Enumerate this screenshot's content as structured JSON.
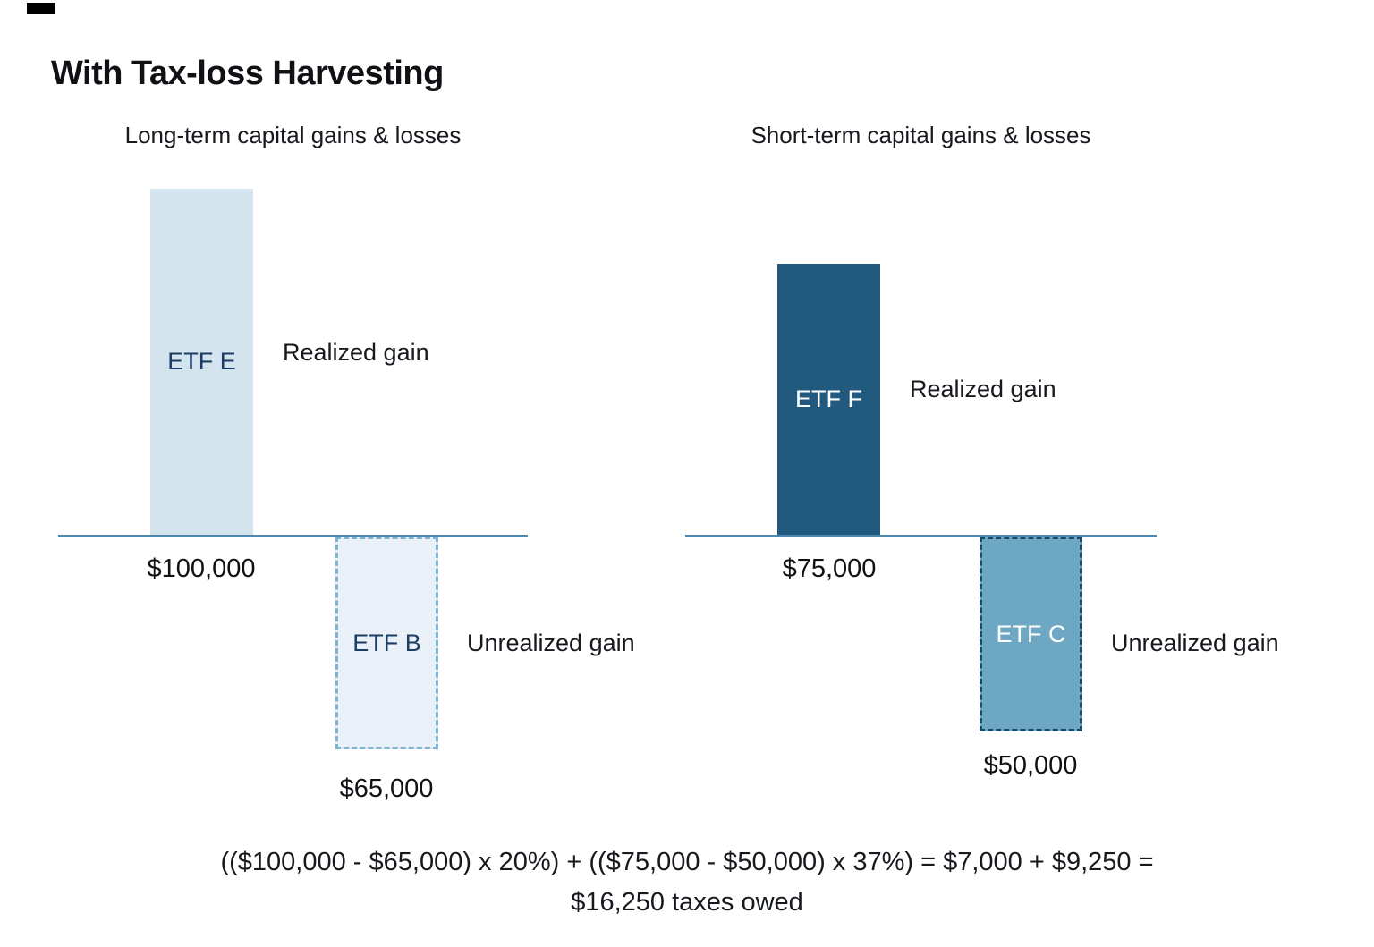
{
  "title": "With Tax-loss Harvesting",
  "panels": {
    "left": {
      "subtitle": "Long-term capital gains & losses",
      "realized": {
        "bar_label": "ETF E",
        "side_label": "Realized gain",
        "amount": "$100,000"
      },
      "unrealized": {
        "bar_label": "ETF B",
        "side_label": "Unrealized gain",
        "amount": "$65,000"
      }
    },
    "right": {
      "subtitle": "Short-term capital gains & losses",
      "realized": {
        "bar_label": "ETF F",
        "side_label": "Realized gain",
        "amount": "$75,000"
      },
      "unrealized": {
        "bar_label": "ETF C",
        "side_label": "Unrealized gain",
        "amount": "$50,000"
      }
    }
  },
  "formula": {
    "line1": "(($100,000 - $65,000) x 20%) + (($75,000 - $50,000) x 37%) = $7,000 + $9,250 =",
    "line2": "$16,250 taxes owed"
  },
  "colors": {
    "realized_light_fill": "#d3e4ee",
    "unrealized_light_fill": "#e9f0f7",
    "unrealized_light_border": "#7fb1d0",
    "realized_dark_fill": "#215a7e",
    "unrealized_dark_fill": "#6ea7c4",
    "unrealized_dark_border": "#1d4965",
    "axis_line": "#4d89ae",
    "bar_label_navy": "#1d3c63",
    "bar_label_white": "#ffffff",
    "text": "#16191d"
  },
  "chart_data": [
    {
      "type": "bar",
      "title": "Long-term capital gains & losses",
      "categories": [
        "ETF E",
        "ETF B"
      ],
      "values": [
        100000,
        65000
      ],
      "directions": [
        "up",
        "down"
      ],
      "styles": [
        "solid light-blue fill",
        "dashed outline, very light blue fill"
      ],
      "bar_annotations": [
        "Realized gain",
        "Unrealized gain"
      ],
      "value_labels": [
        "$100,000",
        "$65,000"
      ],
      "xlabel": "",
      "ylabel": "",
      "baseline": 0,
      "grid": false,
      "legend": false
    },
    {
      "type": "bar",
      "title": "Short-term capital gains & losses",
      "categories": [
        "ETF F",
        "ETF C"
      ],
      "values": [
        75000,
        50000
      ],
      "directions": [
        "up",
        "down"
      ],
      "styles": [
        "solid dark-teal fill",
        "dashed dark outline, medium blue fill"
      ],
      "bar_annotations": [
        "Realized gain",
        "Unrealized gain"
      ],
      "value_labels": [
        "$75,000",
        "$50,000"
      ],
      "xlabel": "",
      "ylabel": "",
      "baseline": 0,
      "grid": false,
      "legend": false
    }
  ]
}
